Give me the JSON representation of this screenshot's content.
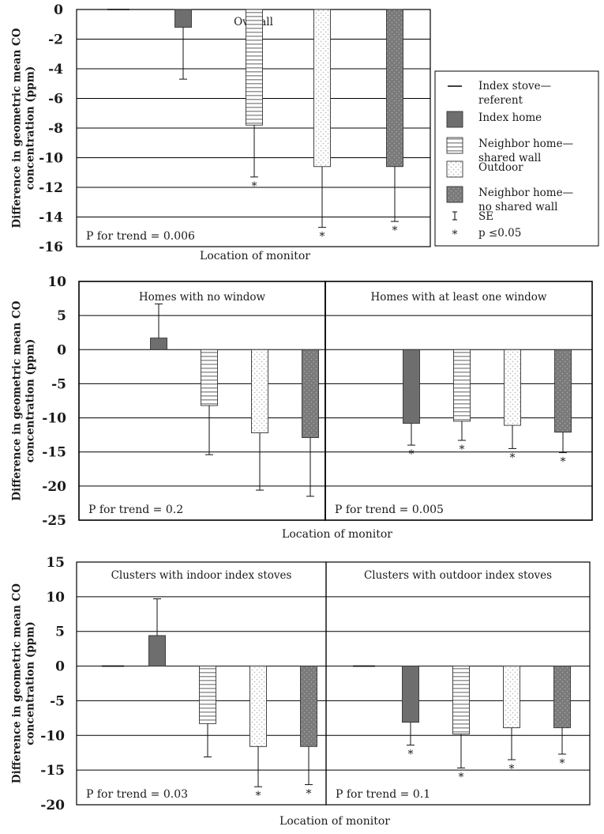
{
  "legend": {
    "items": [
      {
        "key": "stove",
        "label_lines": [
          "Index stove—",
          "referent"
        ]
      },
      {
        "key": "home",
        "label_lines": [
          "Index home"
        ]
      },
      {
        "key": "shared",
        "label_lines": [
          "Neighbor home—",
          "shared wall"
        ]
      },
      {
        "key": "outdoor",
        "label_lines": [
          "Outdoor"
        ]
      },
      {
        "key": "noshared",
        "label_lines": [
          "Neighbor home—",
          "no shared wall"
        ]
      },
      {
        "key": "se",
        "label_lines": [
          "SE"
        ]
      },
      {
        "key": "sig",
        "label_lines": [
          "p ≤0.05"
        ]
      }
    ]
  },
  "colors": {
    "index_home": "#6e6e6e",
    "neighbor_no_shared": "#7a7a7a",
    "outdoor_dots": "#bdbdbd",
    "stripes": "#9a9a9a"
  },
  "chart_data": [
    {
      "type": "bar",
      "ylabel_lines": [
        "Difference in geometric mean CO",
        "concentration (ppm)"
      ],
      "xlabel": "Location of monitor",
      "ylim": [
        -16,
        0
      ],
      "yticks": [
        0,
        -2,
        -4,
        -6,
        -8,
        -10,
        -12,
        -14,
        -16
      ],
      "tick_labels": [
        "0",
        "-2",
        "-4",
        "-6",
        "-8",
        "-10",
        "-12",
        "-14",
        "-16"
      ],
      "panels": [
        {
          "title": "Overall",
          "trend": "P for trend = 0.006",
          "categories": [
            "stove",
            "home",
            "shared",
            "outdoor",
            "noshared"
          ],
          "values": [
            0,
            -1.2,
            -7.8,
            -10.6,
            -10.6
          ],
          "se": [
            null,
            3.5,
            3.5,
            4.1,
            3.7
          ],
          "significant": [
            false,
            false,
            true,
            true,
            true
          ]
        }
      ]
    },
    {
      "type": "bar",
      "ylabel_lines": [
        "Difference in geometric mean CO",
        "concentration (ppm)"
      ],
      "xlabel": "Location of monitor",
      "ylim": [
        -25,
        10
      ],
      "yticks": [
        10,
        5,
        0,
        -5,
        -10,
        -15,
        -20,
        -25
      ],
      "tick_labels": [
        "10",
        "5",
        "0",
        "-5",
        "-10",
        "-15",
        "-20",
        "-25"
      ],
      "panels": [
        {
          "title": "Homes with no window",
          "trend": "P for trend = 0.2",
          "categories": [
            "home",
            "shared",
            "outdoor",
            "noshared"
          ],
          "values": [
            1.7,
            -8.2,
            -12.2,
            -12.9
          ],
          "se": [
            5.0,
            7.2,
            8.4,
            8.6
          ],
          "significant": [
            false,
            false,
            false,
            false
          ]
        },
        {
          "title": "Homes with at least one window",
          "trend": "P for trend = 0.005",
          "categories": [
            "home",
            "shared",
            "outdoor",
            "noshared"
          ],
          "values": [
            -10.8,
            -10.5,
            -11.1,
            -12.1
          ],
          "se": [
            3.2,
            2.8,
            3.4,
            3.0
          ],
          "significant": [
            true,
            true,
            true,
            true
          ]
        }
      ]
    },
    {
      "type": "bar",
      "ylabel_lines": [
        "Difference in geometric mean CO",
        "concentration (ppm)"
      ],
      "xlabel": "Location of monitor",
      "ylim": [
        -20,
        15
      ],
      "yticks": [
        15,
        10,
        5,
        0,
        -5,
        -10,
        -15,
        -20
      ],
      "tick_labels": [
        "15",
        "10",
        "5",
        "0",
        "-5",
        "-10",
        "-15",
        "-20"
      ],
      "panels": [
        {
          "title": "Clusters with indoor index stoves",
          "trend": "P for trend = 0.03",
          "categories": [
            "stove",
            "home",
            "shared",
            "outdoor",
            "noshared"
          ],
          "values": [
            0,
            4.4,
            -8.3,
            -11.6,
            -11.6
          ],
          "se": [
            null,
            5.3,
            4.8,
            5.8,
            5.5
          ],
          "significant": [
            false,
            false,
            false,
            true,
            true
          ]
        },
        {
          "title": "Clusters with outdoor index stoves",
          "trend": "P for trend = 0.1",
          "categories": [
            "stove",
            "home",
            "shared",
            "outdoor",
            "noshared"
          ],
          "values": [
            0,
            -8.1,
            -9.8,
            -8.9,
            -8.9
          ],
          "se": [
            null,
            3.3,
            4.9,
            4.6,
            3.8
          ],
          "significant": [
            false,
            true,
            true,
            true,
            true
          ]
        }
      ]
    }
  ]
}
